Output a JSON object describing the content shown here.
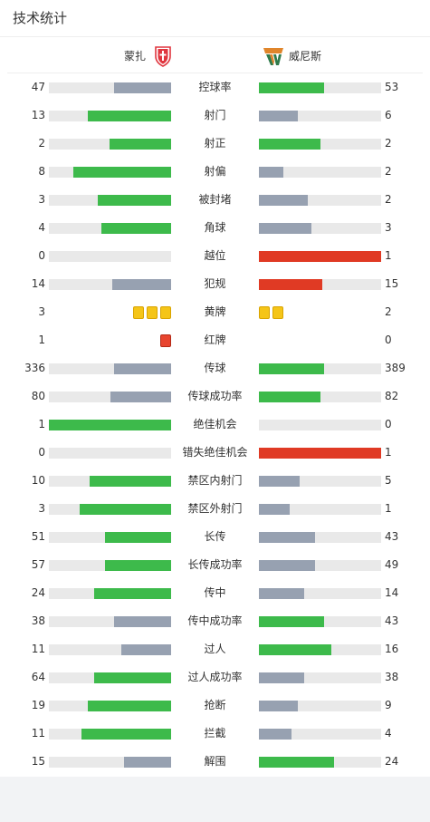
{
  "page": {
    "title": "技术统计"
  },
  "teams": {
    "home": {
      "name": "蒙扎",
      "logo_icon": "monza-crest-icon",
      "logo_color": "#e0353e"
    },
    "away": {
      "name": "威尼斯",
      "logo_icon": "venezia-crest-icon",
      "logo_colors": [
        "#e0852b",
        "#2f7a4b"
      ]
    }
  },
  "colors": {
    "win": "#3dba4b",
    "lose": "#97a1b1",
    "highlight": "#e03a24",
    "track": "#e9e9e9",
    "yellow_card": "#f5c518",
    "red_card": "#e8452f"
  },
  "stats": [
    {
      "label": "控球率",
      "home": "47",
      "away": "53",
      "home_frac": 0.47,
      "away_frac": 0.53,
      "home_color": "lose",
      "away_color": "win"
    },
    {
      "label": "射门",
      "home": "13",
      "away": "6",
      "home_frac": 0.684,
      "away_frac": 0.316,
      "home_color": "win",
      "away_color": "lose"
    },
    {
      "label": "射正",
      "home": "2",
      "away": "2",
      "home_frac": 0.5,
      "away_frac": 0.5,
      "home_color": "win",
      "away_color": "win"
    },
    {
      "label": "射偏",
      "home": "8",
      "away": "2",
      "home_frac": 0.8,
      "away_frac": 0.2,
      "home_color": "win",
      "away_color": "lose"
    },
    {
      "label": "被封堵",
      "home": "3",
      "away": "2",
      "home_frac": 0.6,
      "away_frac": 0.4,
      "home_color": "win",
      "away_color": "lose"
    },
    {
      "label": "角球",
      "home": "4",
      "away": "3",
      "home_frac": 0.571,
      "away_frac": 0.429,
      "home_color": "win",
      "away_color": "lose"
    },
    {
      "label": "越位",
      "home": "0",
      "away": "1",
      "home_frac": 0,
      "away_frac": 1,
      "home_color": "lose",
      "away_color": "highlight"
    },
    {
      "label": "犯规",
      "home": "14",
      "away": "15",
      "home_frac": 0.483,
      "away_frac": 0.517,
      "home_color": "lose",
      "away_color": "highlight"
    },
    {
      "label": "黄牌",
      "home": "3",
      "away": "2",
      "cards": "yellow"
    },
    {
      "label": "红牌",
      "home": "1",
      "away": "0",
      "cards": "red"
    },
    {
      "label": "传球",
      "home": "336",
      "away": "389",
      "home_frac": 0.463,
      "away_frac": 0.537,
      "home_color": "lose",
      "away_color": "win"
    },
    {
      "label": "传球成功率",
      "home": "80",
      "away": "82",
      "home_frac": 0.494,
      "away_frac": 0.506,
      "home_color": "lose",
      "away_color": "win"
    },
    {
      "label": "绝佳机会",
      "home": "1",
      "away": "0",
      "home_frac": 1,
      "away_frac": 0,
      "home_color": "win",
      "away_color": "lose"
    },
    {
      "label": "错失绝佳机会",
      "home": "0",
      "away": "1",
      "home_frac": 0,
      "away_frac": 1,
      "home_color": "lose",
      "away_color": "highlight"
    },
    {
      "label": "禁区内射门",
      "home": "10",
      "away": "5",
      "home_frac": 0.667,
      "away_frac": 0.333,
      "home_color": "win",
      "away_color": "lose"
    },
    {
      "label": "禁区外射门",
      "home": "3",
      "away": "1",
      "home_frac": 0.75,
      "away_frac": 0.25,
      "home_color": "win",
      "away_color": "lose"
    },
    {
      "label": "长传",
      "home": "51",
      "away": "43",
      "home_frac": 0.543,
      "away_frac": 0.457,
      "home_color": "win",
      "away_color": "lose"
    },
    {
      "label": "长传成功率",
      "home": "57",
      "away": "49",
      "home_frac": 0.538,
      "away_frac": 0.462,
      "home_color": "win",
      "away_color": "lose"
    },
    {
      "label": "传中",
      "home": "24",
      "away": "14",
      "home_frac": 0.632,
      "away_frac": 0.368,
      "home_color": "win",
      "away_color": "lose"
    },
    {
      "label": "传中成功率",
      "home": "38",
      "away": "43",
      "home_frac": 0.469,
      "away_frac": 0.531,
      "home_color": "lose",
      "away_color": "win"
    },
    {
      "label": "过人",
      "home": "11",
      "away": "16",
      "home_frac": 0.407,
      "away_frac": 0.593,
      "home_color": "lose",
      "away_color": "win"
    },
    {
      "label": "过人成功率",
      "home": "64",
      "away": "38",
      "home_frac": 0.627,
      "away_frac": 0.373,
      "home_color": "win",
      "away_color": "lose"
    },
    {
      "label": "抢断",
      "home": "19",
      "away": "9",
      "home_frac": 0.679,
      "away_frac": 0.321,
      "home_color": "win",
      "away_color": "lose"
    },
    {
      "label": "拦截",
      "home": "11",
      "away": "4",
      "home_frac": 0.733,
      "away_frac": 0.267,
      "home_color": "win",
      "away_color": "lose"
    },
    {
      "label": "解围",
      "home": "15",
      "away": "24",
      "home_frac": 0.385,
      "away_frac": 0.615,
      "home_color": "lose",
      "away_color": "win"
    }
  ]
}
